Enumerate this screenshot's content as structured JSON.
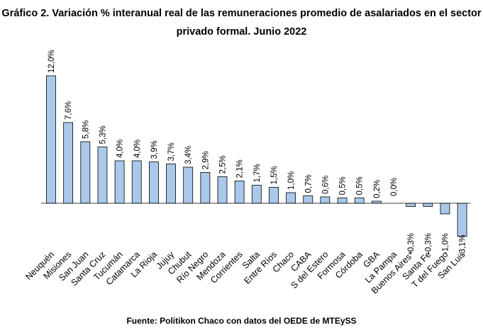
{
  "chart_data": {
    "type": "bar",
    "title_line1": "Gráfico 2. Variación % interanual real de las remuneraciones promedio de asalariados en el sector",
    "title_line2": "privado formal. Junio 2022",
    "source": "Fuente: Politikon Chaco con datos del OEDE de MTEySS",
    "categories": [
      "Neuquén",
      "Misiones",
      "San Juan",
      "Santa Cruz",
      "Tucumán",
      "Catamarca",
      "La Rioja",
      "Jujuy",
      "Chubut",
      "Río Negro",
      "Mendoza",
      "Corrientes",
      "Salta",
      "Entre Ríos",
      "Chaco",
      "CABA",
      "S del Estero",
      "Formosa",
      "Córdoba",
      "GBA",
      "La Pampa",
      "Buenos Aires*",
      "Santa Fe",
      "T del Fuego",
      "San Luis"
    ],
    "values": [
      12.0,
      7.6,
      5.8,
      5.3,
      4.0,
      4.0,
      3.9,
      3.7,
      3.4,
      2.9,
      2.5,
      2.1,
      1.7,
      1.5,
      1.0,
      0.7,
      0.6,
      0.5,
      0.5,
      0.2,
      0.0,
      -0.3,
      -0.3,
      -1.0,
      -3.1
    ],
    "labels": [
      "12,0%",
      "7,6%",
      "5,8%",
      "5,3%",
      "4,0%",
      "4,0%",
      "3,9%",
      "3,7%",
      "3,4%",
      "2,9%",
      "2,5%",
      "2,1%",
      "1,7%",
      "1,5%",
      "1,0%",
      "0,7%",
      "0,6%",
      "0,5%",
      "0,5%",
      "0,2%",
      "0,0%",
      "-0,3%",
      "-0,3%",
      "-1,0%",
      "-3,1%"
    ],
    "bar_color": "#a9c8ea",
    "grid": false,
    "legend": "none"
  }
}
